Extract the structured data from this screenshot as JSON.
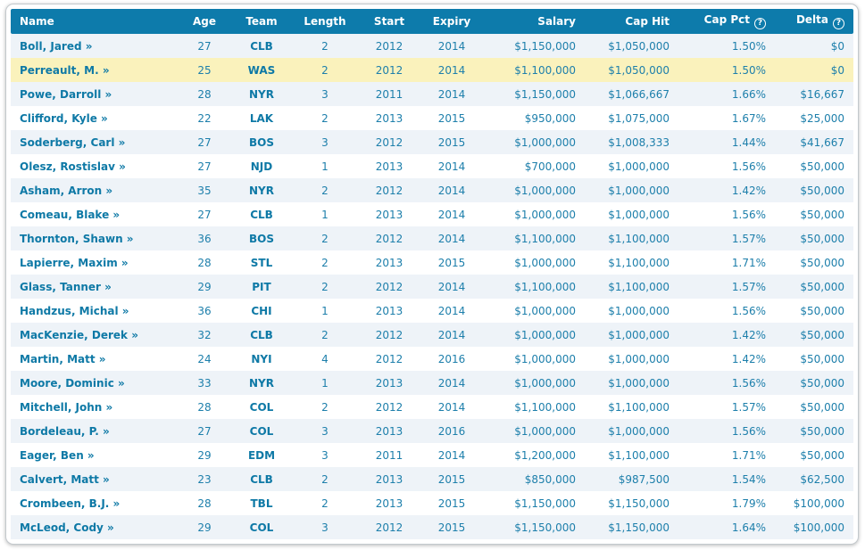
{
  "icons": {
    "help_glyph": "?"
  },
  "colors": {
    "header_bg": "#0d7bab",
    "header_text": "#ffffff",
    "cell_text": "#1d7fab",
    "link_text": "#0e79a6",
    "row_alt_bg": "#eef3f8",
    "row_highlight_bg": "#faf2bc",
    "card_border": "#c3c9cd"
  },
  "table": {
    "link_arrow": "»",
    "highlighted_row_index": 1,
    "columns": [
      {
        "key": "name",
        "label": "Name",
        "help_icon": false
      },
      {
        "key": "age",
        "label": "Age",
        "help_icon": false
      },
      {
        "key": "team",
        "label": "Team",
        "help_icon": false
      },
      {
        "key": "length",
        "label": "Length",
        "help_icon": false
      },
      {
        "key": "start",
        "label": "Start",
        "help_icon": false
      },
      {
        "key": "expiry",
        "label": "Expiry",
        "help_icon": false
      },
      {
        "key": "salary",
        "label": "Salary",
        "help_icon": false
      },
      {
        "key": "cap_hit",
        "label": "Cap Hit",
        "help_icon": false
      },
      {
        "key": "cap_pct",
        "label": "Cap Pct",
        "help_icon": true
      },
      {
        "key": "delta",
        "label": "Delta",
        "help_icon": true
      }
    ],
    "rows": [
      {
        "name": "Boll, Jared",
        "age": "27",
        "team": "CLB",
        "length": "2",
        "start": "2012",
        "expiry": "2014",
        "salary": "$1,150,000",
        "cap_hit": "$1,050,000",
        "cap_pct": "1.50%",
        "delta": "$0"
      },
      {
        "name": "Perreault, M.",
        "age": "25",
        "team": "WAS",
        "length": "2",
        "start": "2012",
        "expiry": "2014",
        "salary": "$1,100,000",
        "cap_hit": "$1,050,000",
        "cap_pct": "1.50%",
        "delta": "$0"
      },
      {
        "name": "Powe, Darroll",
        "age": "28",
        "team": "NYR",
        "length": "3",
        "start": "2011",
        "expiry": "2014",
        "salary": "$1,150,000",
        "cap_hit": "$1,066,667",
        "cap_pct": "1.66%",
        "delta": "$16,667"
      },
      {
        "name": "Clifford, Kyle",
        "age": "22",
        "team": "LAK",
        "length": "2",
        "start": "2013",
        "expiry": "2015",
        "salary": "$950,000",
        "cap_hit": "$1,075,000",
        "cap_pct": "1.67%",
        "delta": "$25,000"
      },
      {
        "name": "Soderberg, Carl",
        "age": "27",
        "team": "BOS",
        "length": "3",
        "start": "2012",
        "expiry": "2015",
        "salary": "$1,000,000",
        "cap_hit": "$1,008,333",
        "cap_pct": "1.44%",
        "delta": "$41,667"
      },
      {
        "name": "Olesz, Rostislav",
        "age": "27",
        "team": "NJD",
        "length": "1",
        "start": "2013",
        "expiry": "2014",
        "salary": "$700,000",
        "cap_hit": "$1,000,000",
        "cap_pct": "1.56%",
        "delta": "$50,000"
      },
      {
        "name": "Asham, Arron",
        "age": "35",
        "team": "NYR",
        "length": "2",
        "start": "2012",
        "expiry": "2014",
        "salary": "$1,000,000",
        "cap_hit": "$1,000,000",
        "cap_pct": "1.42%",
        "delta": "$50,000"
      },
      {
        "name": "Comeau, Blake",
        "age": "27",
        "team": "CLB",
        "length": "1",
        "start": "2013",
        "expiry": "2014",
        "salary": "$1,000,000",
        "cap_hit": "$1,000,000",
        "cap_pct": "1.56%",
        "delta": "$50,000"
      },
      {
        "name": "Thornton, Shawn",
        "age": "36",
        "team": "BOS",
        "length": "2",
        "start": "2012",
        "expiry": "2014",
        "salary": "$1,100,000",
        "cap_hit": "$1,100,000",
        "cap_pct": "1.57%",
        "delta": "$50,000"
      },
      {
        "name": "Lapierre, Maxim",
        "age": "28",
        "team": "STL",
        "length": "2",
        "start": "2013",
        "expiry": "2015",
        "salary": "$1,000,000",
        "cap_hit": "$1,100,000",
        "cap_pct": "1.71%",
        "delta": "$50,000"
      },
      {
        "name": "Glass, Tanner",
        "age": "29",
        "team": "PIT",
        "length": "2",
        "start": "2012",
        "expiry": "2014",
        "salary": "$1,100,000",
        "cap_hit": "$1,100,000",
        "cap_pct": "1.57%",
        "delta": "$50,000"
      },
      {
        "name": "Handzus, Michal",
        "age": "36",
        "team": "CHI",
        "length": "1",
        "start": "2013",
        "expiry": "2014",
        "salary": "$1,000,000",
        "cap_hit": "$1,000,000",
        "cap_pct": "1.56%",
        "delta": "$50,000"
      },
      {
        "name": "MacKenzie, Derek",
        "age": "32",
        "team": "CLB",
        "length": "2",
        "start": "2012",
        "expiry": "2014",
        "salary": "$1,000,000",
        "cap_hit": "$1,000,000",
        "cap_pct": "1.42%",
        "delta": "$50,000"
      },
      {
        "name": "Martin, Matt",
        "age": "24",
        "team": "NYI",
        "length": "4",
        "start": "2012",
        "expiry": "2016",
        "salary": "$1,000,000",
        "cap_hit": "$1,000,000",
        "cap_pct": "1.42%",
        "delta": "$50,000"
      },
      {
        "name": "Moore, Dominic",
        "age": "33",
        "team": "NYR",
        "length": "1",
        "start": "2013",
        "expiry": "2014",
        "salary": "$1,000,000",
        "cap_hit": "$1,000,000",
        "cap_pct": "1.56%",
        "delta": "$50,000"
      },
      {
        "name": "Mitchell, John",
        "age": "28",
        "team": "COL",
        "length": "2",
        "start": "2012",
        "expiry": "2014",
        "salary": "$1,100,000",
        "cap_hit": "$1,100,000",
        "cap_pct": "1.57%",
        "delta": "$50,000"
      },
      {
        "name": "Bordeleau, P.",
        "age": "27",
        "team": "COL",
        "length": "3",
        "start": "2013",
        "expiry": "2016",
        "salary": "$1,000,000",
        "cap_hit": "$1,000,000",
        "cap_pct": "1.56%",
        "delta": "$50,000"
      },
      {
        "name": "Eager, Ben",
        "age": "29",
        "team": "EDM",
        "length": "3",
        "start": "2011",
        "expiry": "2014",
        "salary": "$1,200,000",
        "cap_hit": "$1,100,000",
        "cap_pct": "1.71%",
        "delta": "$50,000"
      },
      {
        "name": "Calvert, Matt",
        "age": "23",
        "team": "CLB",
        "length": "2",
        "start": "2013",
        "expiry": "2015",
        "salary": "$850,000",
        "cap_hit": "$987,500",
        "cap_pct": "1.54%",
        "delta": "$62,500"
      },
      {
        "name": "Crombeen, B.J.",
        "age": "28",
        "team": "TBL",
        "length": "2",
        "start": "2013",
        "expiry": "2015",
        "salary": "$1,150,000",
        "cap_hit": "$1,150,000",
        "cap_pct": "1.79%",
        "delta": "$100,000"
      },
      {
        "name": "McLeod, Cody",
        "age": "29",
        "team": "COL",
        "length": "3",
        "start": "2012",
        "expiry": "2015",
        "salary": "$1,150,000",
        "cap_hit": "$1,150,000",
        "cap_pct": "1.64%",
        "delta": "$100,000"
      }
    ]
  }
}
